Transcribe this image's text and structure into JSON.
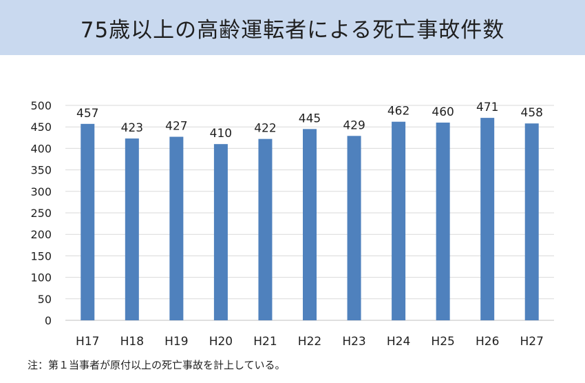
{
  "title": "75歳以上の高齢運転者による死亡事故件数",
  "note": "注：第１当事者が原付以上の死亡事故を計上している。",
  "chart_data": {
    "type": "bar",
    "title": "",
    "xlabel": "",
    "ylabel": "",
    "categories": [
      "H17",
      "H18",
      "H19",
      "H20",
      "H21",
      "H22",
      "H23",
      "H24",
      "H25",
      "H26",
      "H27"
    ],
    "values": [
      457,
      423,
      427,
      410,
      422,
      445,
      429,
      462,
      460,
      471,
      458
    ],
    "ylim": [
      0,
      500
    ],
    "yticks": [
      0,
      50,
      100,
      150,
      200,
      250,
      300,
      350,
      400,
      450,
      500
    ],
    "grid": true,
    "data_labels": true,
    "legend": "none",
    "bar_color": "#4f81bd",
    "grid_color": "#d9d9d9"
  }
}
